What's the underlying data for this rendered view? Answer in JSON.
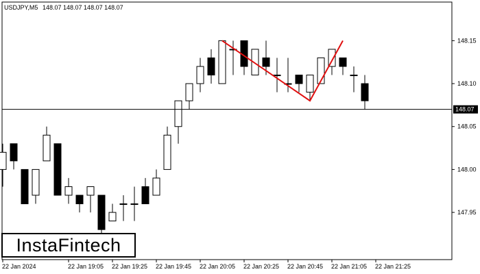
{
  "header": {
    "symbol": "USDJPY,M5",
    "ohlc": "148.07 148.07 148.07 148.07"
  },
  "logo": {
    "text": "InstaFintech"
  },
  "colors": {
    "bull_fill": "#ffffff",
    "bear_fill": "#000000",
    "candle_stroke": "#000000",
    "pattern_line": "#e01010",
    "price_line": "#000000",
    "current_price_box": "#000000",
    "current_price_text": "#ffffff"
  },
  "chart_data": {
    "type": "candlestick",
    "ylim": [
      147.895,
      148.195
    ],
    "y_ticks": [
      "148.15",
      "148.10",
      "148.05",
      "148.00",
      "147.95"
    ],
    "x_tick_labels": [
      {
        "label": "22 Jan 2024",
        "index": 0
      },
      {
        "label": "22 Jan 19:05",
        "index": 6
      },
      {
        "label": "22 Jan 19:25",
        "index": 10
      },
      {
        "label": "22 Jan 19:45",
        "index": 14
      },
      {
        "label": "22 Jan 20:05",
        "index": 18
      },
      {
        "label": "22 Jan 20:25",
        "index": 22
      },
      {
        "label": "22 Jan 20:45",
        "index": 26
      },
      {
        "label": "22 Jan 21:05",
        "index": 30
      },
      {
        "label": "22 Jan 21:25",
        "index": 34
      }
    ],
    "current_price": "148.07",
    "candles": [
      {
        "o": 148.0,
        "h": 148.03,
        "l": 147.98,
        "c": 148.02
      },
      {
        "o": 148.03,
        "h": 148.03,
        "l": 148.0,
        "c": 148.01
      },
      {
        "o": 148.0,
        "h": 148.0,
        "l": 147.96,
        "c": 147.96
      },
      {
        "o": 147.97,
        "h": 148.0,
        "l": 147.96,
        "c": 148.0
      },
      {
        "o": 148.01,
        "h": 148.05,
        "l": 148.01,
        "c": 148.04
      },
      {
        "o": 148.03,
        "h": 148.03,
        "l": 147.97,
        "c": 147.97
      },
      {
        "o": 147.97,
        "h": 147.99,
        "l": 147.96,
        "c": 147.98
      },
      {
        "o": 147.97,
        "h": 147.97,
        "l": 147.95,
        "c": 147.96
      },
      {
        "o": 147.97,
        "h": 147.98,
        "l": 147.95,
        "c": 147.98
      },
      {
        "o": 147.97,
        "h": 147.97,
        "l": 147.92,
        "c": 147.93
      },
      {
        "o": 147.94,
        "h": 147.96,
        "l": 147.94,
        "c": 147.95
      },
      {
        "o": 147.96,
        "h": 147.97,
        "l": 147.94,
        "c": 147.96
      },
      {
        "o": 147.96,
        "h": 147.98,
        "l": 147.94,
        "c": 147.96
      },
      {
        "o": 147.98,
        "h": 147.99,
        "l": 147.96,
        "c": 147.96
      },
      {
        "o": 147.97,
        "h": 148.0,
        "l": 147.97,
        "c": 147.99
      },
      {
        "o": 148.0,
        "h": 148.05,
        "l": 148.0,
        "c": 148.04
      },
      {
        "o": 148.05,
        "h": 148.08,
        "l": 148.03,
        "c": 148.08
      },
      {
        "o": 148.08,
        "h": 148.1,
        "l": 148.07,
        "c": 148.1
      },
      {
        "o": 148.1,
        "h": 148.13,
        "l": 148.09,
        "c": 148.12
      },
      {
        "o": 148.13,
        "h": 148.14,
        "l": 148.1,
        "c": 148.11
      },
      {
        "o": 148.1,
        "h": 148.15,
        "l": 148.1,
        "c": 148.15
      },
      {
        "o": 148.14,
        "h": 148.15,
        "l": 148.11,
        "c": 148.14
      },
      {
        "o": 148.15,
        "h": 148.15,
        "l": 148.11,
        "c": 148.12
      },
      {
        "o": 148.11,
        "h": 148.14,
        "l": 148.11,
        "c": 148.14
      },
      {
        "o": 148.13,
        "h": 148.15,
        "l": 148.11,
        "c": 148.12
      },
      {
        "o": 148.11,
        "h": 148.13,
        "l": 148.09,
        "c": 148.11
      },
      {
        "o": 148.1,
        "h": 148.13,
        "l": 148.09,
        "c": 148.1
      },
      {
        "o": 148.11,
        "h": 148.11,
        "l": 148.09,
        "c": 148.1
      },
      {
        "o": 148.09,
        "h": 148.11,
        "l": 148.08,
        "c": 148.11
      },
      {
        "o": 148.1,
        "h": 148.13,
        "l": 148.1,
        "c": 148.13
      },
      {
        "o": 148.12,
        "h": 148.14,
        "l": 148.11,
        "c": 148.14
      },
      {
        "o": 148.13,
        "h": 148.13,
        "l": 148.11,
        "c": 148.12
      },
      {
        "o": 148.11,
        "h": 148.12,
        "l": 148.09,
        "c": 148.11
      },
      {
        "o": 148.1,
        "h": 148.11,
        "l": 148.07,
        "c": 148.08
      }
    ],
    "pattern_line": [
      {
        "index": 20,
        "y": 148.15
      },
      {
        "index": 28,
        "y": 148.08
      },
      {
        "index": 31,
        "y": 148.15
      }
    ]
  }
}
